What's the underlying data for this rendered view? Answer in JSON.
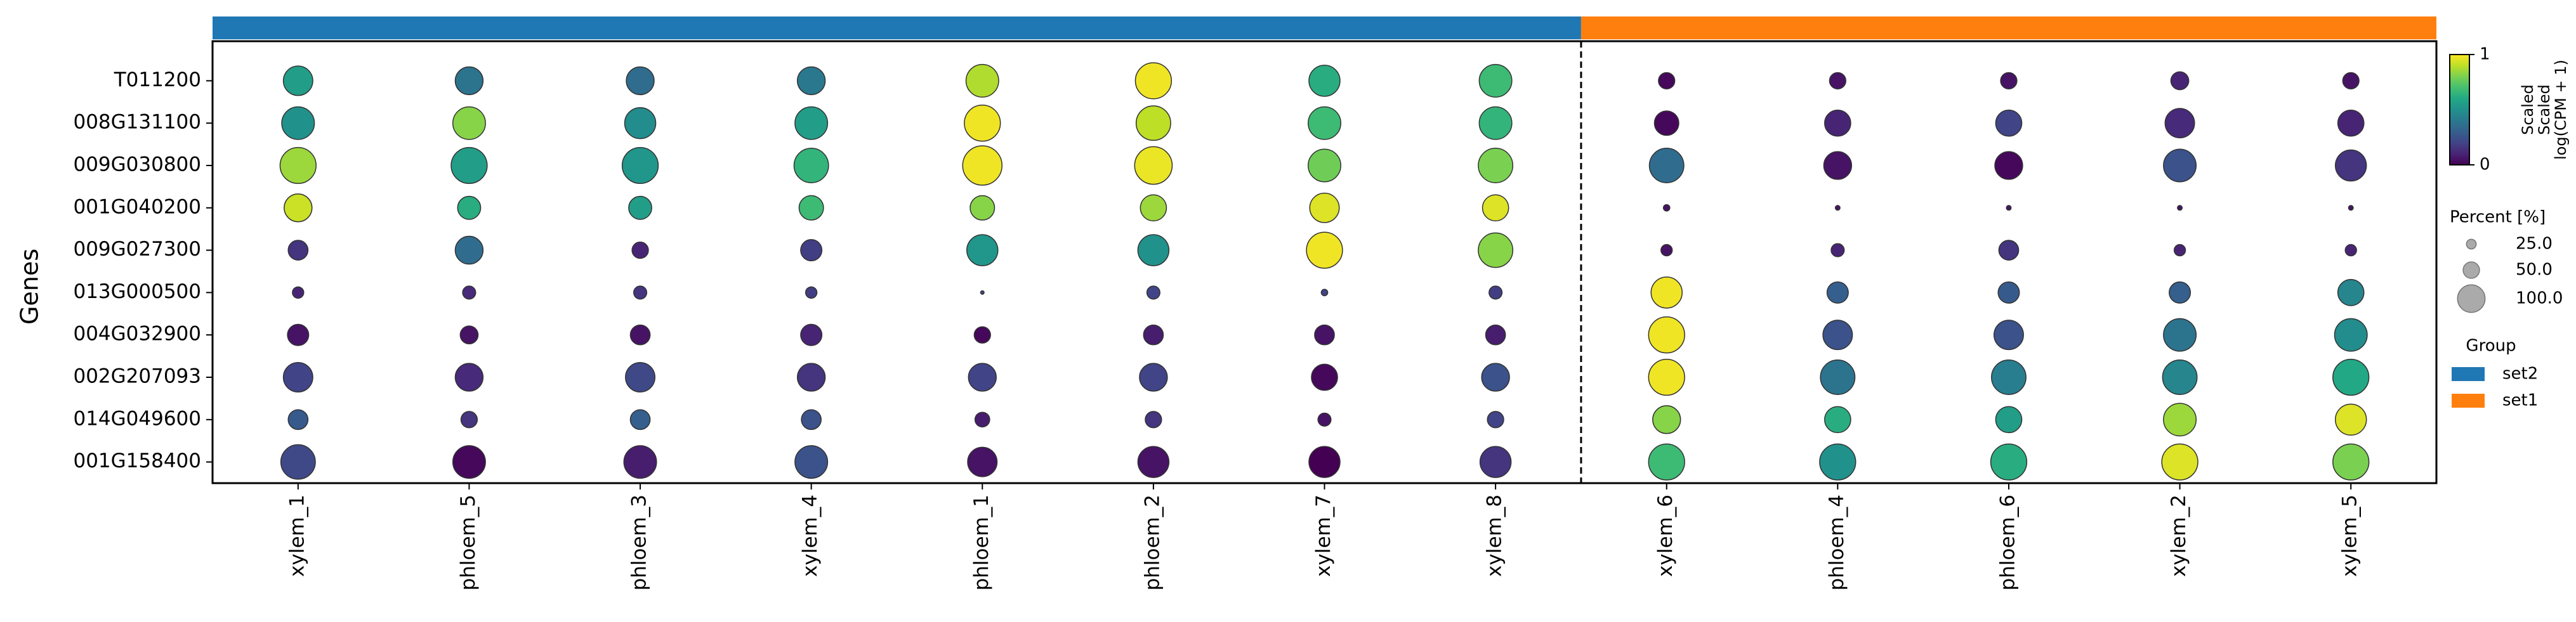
{
  "chart_data": {
    "type": "dotplot",
    "ylabel": "Genes",
    "categories": [
      "xylem_1",
      "phloem_5",
      "phloem_3",
      "xylem_4",
      "phloem_1",
      "phloem_2",
      "xylem_7",
      "xylem_8",
      "xylem_6",
      "phloem_4",
      "phloem_6",
      "xylem_2",
      "xylem_5"
    ],
    "genes": [
      "T011200",
      "008G131100",
      "009G030800",
      "001G040200",
      "009G027300",
      "013G000500",
      "004G032900",
      "002G207093",
      "014G049600",
      "001G158400"
    ],
    "groups": [
      {
        "name": "set2",
        "color": "#1f77b4",
        "span": 8
      },
      {
        "name": "set1",
        "color": "#ff7f0e",
        "span": 5
      }
    ],
    "colormap": "viridis",
    "values": [
      [
        0.55,
        0.38,
        0.35,
        0.4,
        0.88,
        0.98,
        0.62,
        0.68,
        0.02,
        0.05,
        0.05,
        0.1,
        0.05
      ],
      [
        0.5,
        0.82,
        0.48,
        0.55,
        0.98,
        0.9,
        0.68,
        0.65,
        0.02,
        0.1,
        0.2,
        0.12,
        0.1
      ],
      [
        0.85,
        0.55,
        0.52,
        0.65,
        0.98,
        0.97,
        0.78,
        0.8,
        0.35,
        0.05,
        0.02,
        0.25,
        0.15
      ],
      [
        0.92,
        0.62,
        0.55,
        0.68,
        0.82,
        0.85,
        0.95,
        0.95,
        0.05,
        0.05,
        0.05,
        0.05,
        0.05
      ],
      [
        0.15,
        0.35,
        0.1,
        0.18,
        0.52,
        0.5,
        0.98,
        0.82,
        0.05,
        0.1,
        0.15,
        0.1,
        0.1
      ],
      [
        0.1,
        0.12,
        0.15,
        0.18,
        0.2,
        0.2,
        0.2,
        0.18,
        0.98,
        0.3,
        0.28,
        0.3,
        0.45
      ],
      [
        0.05,
        0.05,
        0.05,
        0.1,
        0.02,
        0.08,
        0.05,
        0.08,
        0.98,
        0.25,
        0.25,
        0.38,
        0.48
      ],
      [
        0.2,
        0.12,
        0.22,
        0.15,
        0.2,
        0.2,
        0.02,
        0.25,
        0.98,
        0.38,
        0.42,
        0.45,
        0.6
      ],
      [
        0.28,
        0.15,
        0.3,
        0.25,
        0.08,
        0.15,
        0.05,
        0.2,
        0.82,
        0.62,
        0.55,
        0.85,
        0.95
      ],
      [
        0.22,
        0.02,
        0.08,
        0.25,
        0.05,
        0.05,
        0.0,
        0.15,
        0.68,
        0.5,
        0.62,
        0.95,
        0.8
      ]
    ],
    "sizes": [
      [
        68,
        63,
        63,
        63,
        78,
        89,
        73,
        78,
        31,
        31,
        31,
        35,
        31
      ],
      [
        78,
        78,
        73,
        78,
        89,
        84,
        78,
        78,
        53,
        58,
        58,
        68,
        58
      ],
      [
        89,
        89,
        89,
        84,
        100,
        94,
        78,
        84,
        84,
        63,
        63,
        78,
        73
      ],
      [
        63,
        49,
        49,
        53,
        53,
        58,
        68,
        58,
        9,
        6,
        6,
        6,
        6
      ],
      [
        40,
        63,
        31,
        44,
        73,
        73,
        89,
        84,
        19,
        23,
        40,
        19,
        19
      ],
      [
        19,
        23,
        23,
        19,
        4,
        23,
        9,
        23,
        73,
        44,
        44,
        44,
        58
      ],
      [
        44,
        35,
        40,
        44,
        31,
        40,
        40,
        40,
        89,
        68,
        68,
        78,
        78
      ],
      [
        68,
        63,
        68,
        63,
        63,
        63,
        58,
        63,
        89,
        84,
        84,
        84,
        89
      ],
      [
        40,
        31,
        40,
        40,
        27,
        31,
        23,
        31,
        63,
        58,
        58,
        78,
        73
      ],
      [
        84,
        78,
        78,
        78,
        68,
        73,
        73,
        73,
        89,
        89,
        89,
        89,
        89
      ]
    ],
    "colorbar": {
      "title": "Scaled",
      "label": [
        "Scaled",
        "log(CPM + 1)"
      ],
      "lim": [
        0,
        1
      ],
      "ticks": [
        0,
        1
      ]
    },
    "size_legend": {
      "title": "Percent [%]",
      "ticks": [
        {
          "value": 25,
          "label": "25.0"
        },
        {
          "value": 50,
          "label": "50.0"
        },
        {
          "value": 100,
          "label": "100.0"
        }
      ]
    },
    "group_legend": {
      "title": "Group"
    }
  }
}
